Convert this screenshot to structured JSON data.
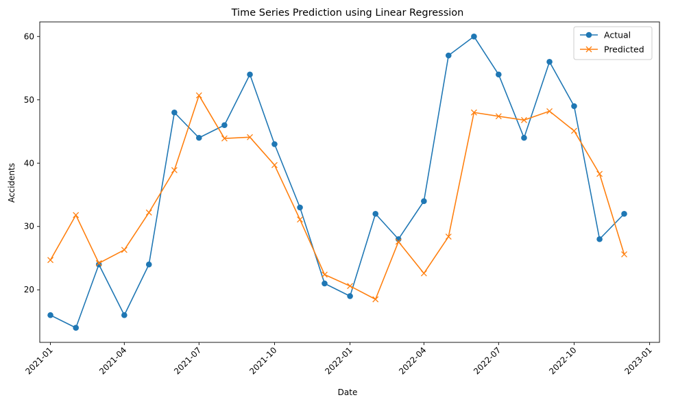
{
  "chart_data": {
    "type": "line",
    "title": "Time Series Prediction using Linear Regression",
    "xlabel": "Date",
    "ylabel": "Accidents",
    "x": [
      "2021-01",
      "2021-02",
      "2021-03",
      "2021-04",
      "2021-05",
      "2021-06",
      "2021-07",
      "2021-08",
      "2021-09",
      "2021-10",
      "2021-11",
      "2021-12",
      "2022-01",
      "2022-02",
      "2022-03",
      "2022-04",
      "2022-05",
      "2022-06",
      "2022-07",
      "2022-08",
      "2022-09",
      "2022-10",
      "2022-11",
      "2022-12"
    ],
    "x_ticks": [
      "2021-01",
      "2021-04",
      "2021-07",
      "2021-10",
      "2022-01",
      "2022-04",
      "2022-07",
      "2022-10",
      "2023-01"
    ],
    "xlim": [
      "2020-12-19",
      "2023-01-13"
    ],
    "y_ticks": [
      20,
      30,
      40,
      50,
      60
    ],
    "ylim": [
      11.7,
      62.3
    ],
    "grid": false,
    "legend_position": "top-right",
    "series": [
      {
        "name": "Actual",
        "color": "#1f77b4",
        "marker": "circle",
        "values": [
          16,
          14,
          24,
          16,
          24,
          48,
          44,
          46,
          54,
          43,
          33,
          21,
          19,
          32,
          28,
          34,
          57,
          60,
          54,
          44,
          56,
          49,
          28,
          32
        ]
      },
      {
        "name": "Predicted",
        "color": "#ff7f0e",
        "marker": "x",
        "values": [
          24.7,
          31.8,
          24.2,
          26.3,
          32.2,
          38.9,
          50.7,
          43.9,
          44.1,
          39.7,
          31.1,
          22.4,
          20.6,
          18.5,
          27.6,
          22.6,
          28.4,
          48.0,
          47.4,
          46.8,
          48.2,
          45.1,
          38.3,
          25.6
        ]
      }
    ]
  }
}
